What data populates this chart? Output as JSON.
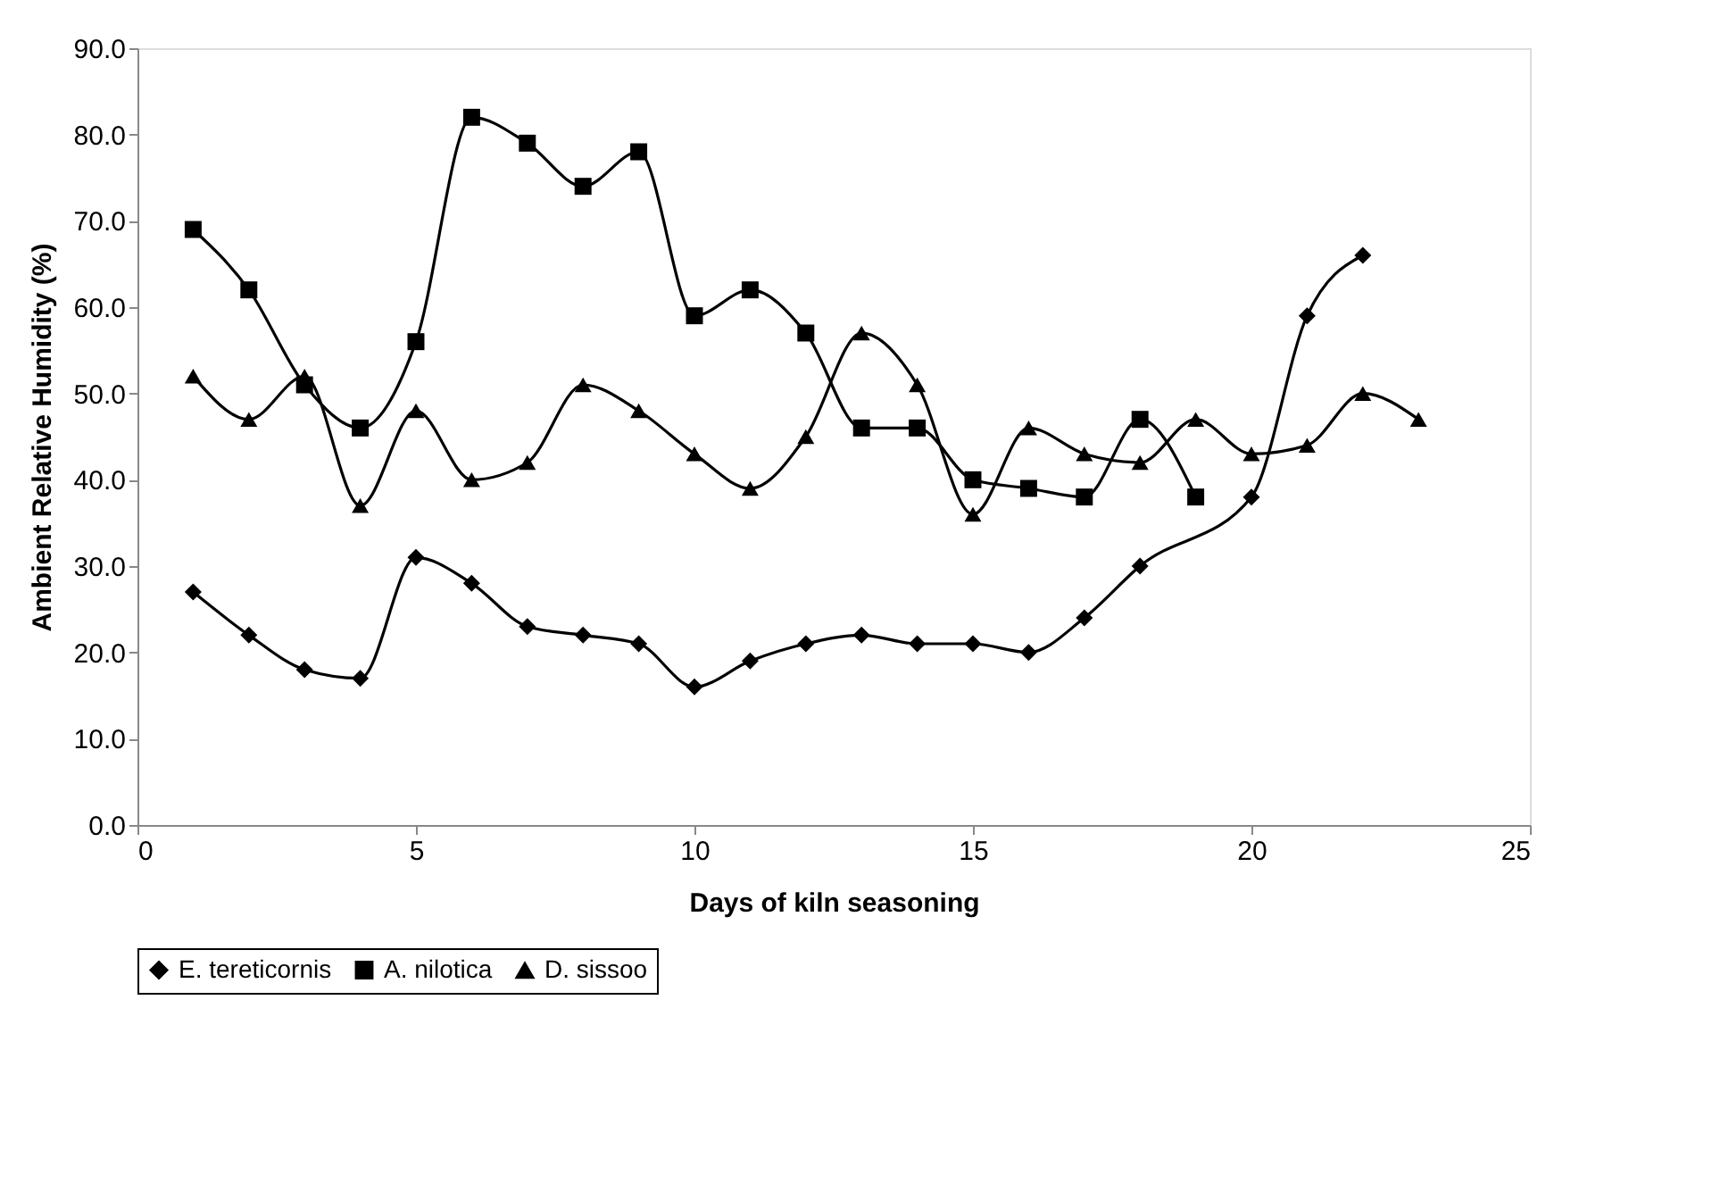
{
  "chart_data": {
    "type": "line",
    "xlabel": "Days of kiln seasoning",
    "ylabel": "Ambient Relative Humidity (%)",
    "x": [
      1,
      2,
      3,
      4,
      5,
      6,
      7,
      8,
      9,
      10,
      11,
      12,
      13,
      14,
      15,
      16,
      17,
      18,
      19,
      20,
      21,
      22,
      23
    ],
    "series": [
      {
        "name": "E. tereticornis",
        "color": "#000000",
        "marker": "diamond",
        "x": [
          1,
          2,
          3,
          4,
          5,
          6,
          7,
          8,
          9,
          10,
          11,
          12,
          13,
          14,
          15,
          16,
          17,
          18,
          20,
          21,
          22
        ],
        "values": [
          27,
          22,
          18,
          17,
          31,
          28,
          23,
          22,
          21,
          16,
          19,
          21,
          22,
          21,
          21,
          20,
          24,
          30,
          38,
          59,
          66
        ]
      },
      {
        "name": "A. nilotica",
        "color": "#000000",
        "marker": "square",
        "x": [
          1,
          2,
          3,
          4,
          5,
          6,
          7,
          8,
          9,
          10,
          11,
          12,
          13,
          14,
          15,
          16,
          17,
          18,
          19
        ],
        "values": [
          69,
          62,
          51,
          46,
          56,
          82,
          79,
          74,
          78,
          59,
          62,
          57,
          46,
          46,
          40,
          39,
          38,
          47,
          38
        ]
      },
      {
        "name": "D. sissoo",
        "color": "#000000",
        "marker": "triangle",
        "values": [
          52,
          47,
          52,
          37,
          48,
          40,
          42,
          51,
          48,
          43,
          39,
          45,
          57,
          51,
          36,
          46,
          43,
          42,
          47,
          43,
          44,
          50,
          47
        ]
      }
    ],
    "xlim": [
      0,
      25
    ],
    "xticks": [
      0,
      5,
      10,
      15,
      20,
      25
    ],
    "ylim": [
      0,
      90
    ],
    "yticks": [
      {
        "value": 0,
        "label": "0.0"
      },
      {
        "value": 10,
        "label": "10.0"
      },
      {
        "value": 20,
        "label": "20.0"
      },
      {
        "value": 30,
        "label": "30.0"
      },
      {
        "value": 40,
        "label": "40.0"
      },
      {
        "value": 50,
        "label": "50.0"
      },
      {
        "value": 60,
        "label": "60.0"
      },
      {
        "value": 70,
        "label": "70.0"
      },
      {
        "value": 80,
        "label": "80.0"
      },
      {
        "value": 90,
        "label": "90.0"
      }
    ],
    "grid": false,
    "legend": "bottom",
    "line_style": "solid"
  }
}
